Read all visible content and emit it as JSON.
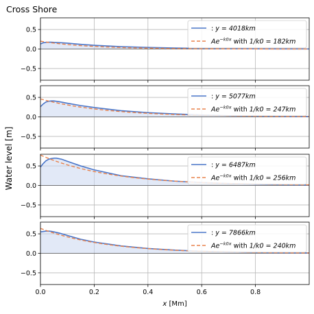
{
  "figure": {
    "title": "Cross Shore",
    "ylabel": "Water level [m]",
    "xlabel": "x [Mm]"
  },
  "colors": {
    "fit": "#e8804a",
    "fill": "#c5d3ef",
    "grid": "#b8b8b8",
    "zero_line": "#555555",
    "measured": "#4a76c9"
  },
  "chart_data": [
    {
      "type": "line",
      "title": "",
      "xlabel": "",
      "ylabel": "",
      "xlim": [
        0,
        1.0
      ],
      "ylim": [
        -0.8,
        0.8
      ],
      "grid": true,
      "legend_position": "top-right",
      "x_ticks": [
        0.0,
        0.2,
        0.4,
        0.6,
        0.8
      ],
      "y_ticks": [
        0.5,
        0.0,
        -0.5
      ],
      "x_tick_labels": [
        "",
        "",
        "",
        "",
        ""
      ],
      "y_tick_labels": [
        "0.5",
        "0.0",
        "−0.5"
      ],
      "series": [
        {
          "name": ": y = 4018km",
          "legend_main": ": ",
          "legend_math": "y = 4018km",
          "style": "solid",
          "x": [
            0.0,
            0.01,
            0.02,
            0.03,
            0.04,
            0.05,
            0.07,
            0.1,
            0.15,
            0.2,
            0.3,
            0.4,
            0.5,
            0.6,
            0.7,
            0.8,
            0.9,
            1.0
          ],
          "y": [
            0.13,
            0.16,
            0.17,
            0.175,
            0.175,
            0.17,
            0.165,
            0.15,
            0.12,
            0.095,
            0.06,
            0.04,
            0.025,
            0.015,
            0.01,
            0.006,
            0.004,
            0.002
          ]
        },
        {
          "name": "Ae^{-k0x} with 1/k0 = 182km",
          "legend_main": "Ae",
          "legend_sup": "−k0x",
          "legend_with": " with ",
          "legend_math": "1/k0 = 182km",
          "style": "dashed",
          "amplitude": 0.2,
          "decay_length": 0.182
        }
      ]
    },
    {
      "type": "line",
      "title": "",
      "xlabel": "",
      "ylabel": "",
      "xlim": [
        0,
        1.0
      ],
      "ylim": [
        -0.8,
        0.8
      ],
      "grid": true,
      "legend_position": "top-right",
      "x_ticks": [
        0.0,
        0.2,
        0.4,
        0.6,
        0.8
      ],
      "y_ticks": [
        0.5,
        0.0,
        -0.5
      ],
      "x_tick_labels": [
        "",
        "",
        "",
        "",
        ""
      ],
      "y_tick_labels": [
        "0.5",
        "0.0",
        "−0.5"
      ],
      "series": [
        {
          "name": ": y = 5077km",
          "legend_main": ": ",
          "legend_math": "y = 5077km",
          "style": "solid",
          "x": [
            0.0,
            0.01,
            0.02,
            0.03,
            0.04,
            0.05,
            0.07,
            0.1,
            0.15,
            0.2,
            0.3,
            0.4,
            0.5,
            0.6,
            0.7,
            0.8,
            0.9,
            1.0
          ],
          "y": [
            0.26,
            0.33,
            0.38,
            0.4,
            0.41,
            0.41,
            0.39,
            0.35,
            0.29,
            0.24,
            0.16,
            0.11,
            0.075,
            0.05,
            0.03,
            0.02,
            0.012,
            0.008
          ]
        },
        {
          "name": "Ae^{-k0x} with 1/k0 = 247km",
          "legend_main": "Ae",
          "legend_sup": "−k0x",
          "legend_with": " with ",
          "legend_math": "1/k0 = 247km",
          "style": "dashed",
          "amplitude": 0.46,
          "decay_length": 0.247
        }
      ]
    },
    {
      "type": "line",
      "title": "",
      "xlabel": "",
      "ylabel": "",
      "xlim": [
        0,
        1.0
      ],
      "ylim": [
        -0.8,
        0.8
      ],
      "grid": true,
      "legend_position": "top-right",
      "x_ticks": [
        0.0,
        0.2,
        0.4,
        0.6,
        0.8
      ],
      "y_ticks": [
        0.5,
        0.0,
        -0.5
      ],
      "x_tick_labels": [
        "",
        "",
        "",
        "",
        ""
      ],
      "y_tick_labels": [
        "0.5",
        "0.0",
        "−0.5"
      ],
      "series": [
        {
          "name": ": y = 6487km",
          "legend_main": ": ",
          "legend_math": "y = 6487km",
          "style": "solid",
          "x": [
            0.0,
            0.01,
            0.02,
            0.03,
            0.04,
            0.05,
            0.06,
            0.08,
            0.1,
            0.15,
            0.2,
            0.3,
            0.4,
            0.5,
            0.6,
            0.7,
            0.8,
            0.9,
            1.0
          ],
          "y": [
            0.47,
            0.56,
            0.63,
            0.67,
            0.69,
            0.7,
            0.7,
            0.67,
            0.62,
            0.5,
            0.4,
            0.25,
            0.17,
            0.11,
            0.075,
            0.05,
            0.03,
            0.02,
            0.012
          ]
        },
        {
          "name": "Ae^{-k0x} with 1/k0 = 256km",
          "legend_main": "Ae",
          "legend_sup": "−k0x",
          "legend_with": " with ",
          "legend_math": "1/k0 = 256km",
          "style": "dashed",
          "amplitude": 0.78,
          "decay_length": 0.256
        }
      ]
    },
    {
      "type": "line",
      "title": "",
      "xlabel": "x [Mm]",
      "ylabel": "",
      "xlim": [
        0,
        1.0
      ],
      "ylim": [
        -0.8,
        0.8
      ],
      "grid": true,
      "legend_position": "top-right",
      "x_ticks": [
        0.0,
        0.2,
        0.4,
        0.6,
        0.8
      ],
      "y_ticks": [
        0.5,
        0.0,
        -0.5
      ],
      "x_tick_labels": [
        "0.0",
        "0.2",
        "0.4",
        "0.6",
        "0.8"
      ],
      "y_tick_labels": [
        "0.5",
        "0.0",
        "−0.5"
      ],
      "series": [
        {
          "name": ": y = 7866km",
          "legend_main": ": ",
          "legend_math": "y = 7866km",
          "style": "solid",
          "x": [
            0.0,
            0.01,
            0.02,
            0.03,
            0.04,
            0.05,
            0.07,
            0.1,
            0.15,
            0.2,
            0.3,
            0.4,
            0.5,
            0.6,
            0.7,
            0.8,
            0.9,
            1.0
          ],
          "y": [
            0.55,
            0.56,
            0.57,
            0.57,
            0.565,
            0.55,
            0.52,
            0.46,
            0.36,
            0.29,
            0.19,
            0.125,
            0.082,
            0.055,
            0.035,
            0.022,
            0.015,
            0.01
          ]
        },
        {
          "name": "Ae^{-k0x} with 1/k0 = 240km",
          "legend_main": "Ae",
          "legend_sup": "−k0x",
          "legend_with": " with ",
          "legend_math": "1/k0 = 240km",
          "style": "dashed",
          "amplitude": 0.64,
          "decay_length": 0.24
        }
      ]
    }
  ]
}
